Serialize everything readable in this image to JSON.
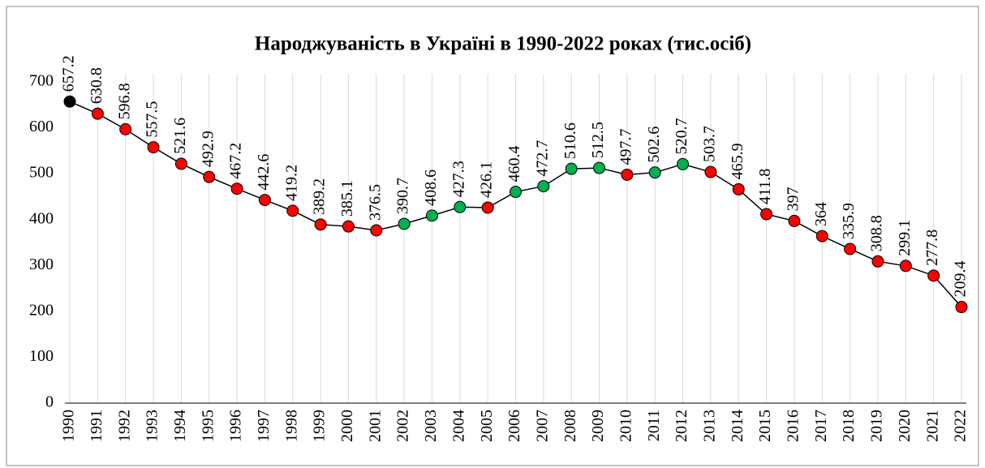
{
  "chart_data": {
    "type": "line",
    "title": "Народжуваність в Україні в 1990-2022 роках (тис.осіб)",
    "categories": [
      "1990",
      "1991",
      "1992",
      "1993",
      "1994",
      "1995",
      "1996",
      "1997",
      "1998",
      "1999",
      "2000",
      "2001",
      "2002",
      "2003",
      "2004",
      "2005",
      "2006",
      "2007",
      "2008",
      "2009",
      "2010",
      "2011",
      "2012",
      "2013",
      "2014",
      "2015",
      "2016",
      "2017",
      "2018",
      "2019",
      "2020",
      "2021",
      "2022"
    ],
    "series": [
      {
        "name": "Народжуваність",
        "color": "#000000",
        "values": [
          657.2,
          630.8,
          596.8,
          557.5,
          521.6,
          492.9,
          467.2,
          442.6,
          419.2,
          389.2,
          385.1,
          376.5,
          390.7,
          408.6,
          427.3,
          426.1,
          460.4,
          472.7,
          510.6,
          512.5,
          497.7,
          502.6,
          520.7,
          503.7,
          465.9,
          411.8,
          397,
          364,
          335.9,
          308.8,
          299.1,
          277.8,
          209.4
        ],
        "marker_colors": [
          "#000000",
          "#ff0000",
          "#ff0000",
          "#ff0000",
          "#ff0000",
          "#ff0000",
          "#ff0000",
          "#ff0000",
          "#ff0000",
          "#ff0000",
          "#ff0000",
          "#ff0000",
          "#00b050",
          "#00b050",
          "#00b050",
          "#ff0000",
          "#00b050",
          "#00b050",
          "#00b050",
          "#00b050",
          "#ff0000",
          "#00b050",
          "#00b050",
          "#ff0000",
          "#ff0000",
          "#ff0000",
          "#ff0000",
          "#ff0000",
          "#ff0000",
          "#ff0000",
          "#ff0000",
          "#ff0000",
          "#ff0000"
        ]
      }
    ],
    "ylim": [
      0,
      700
    ],
    "yticks": [
      0,
      100,
      200,
      300,
      400,
      500,
      600,
      700
    ],
    "grid": "x"
  }
}
